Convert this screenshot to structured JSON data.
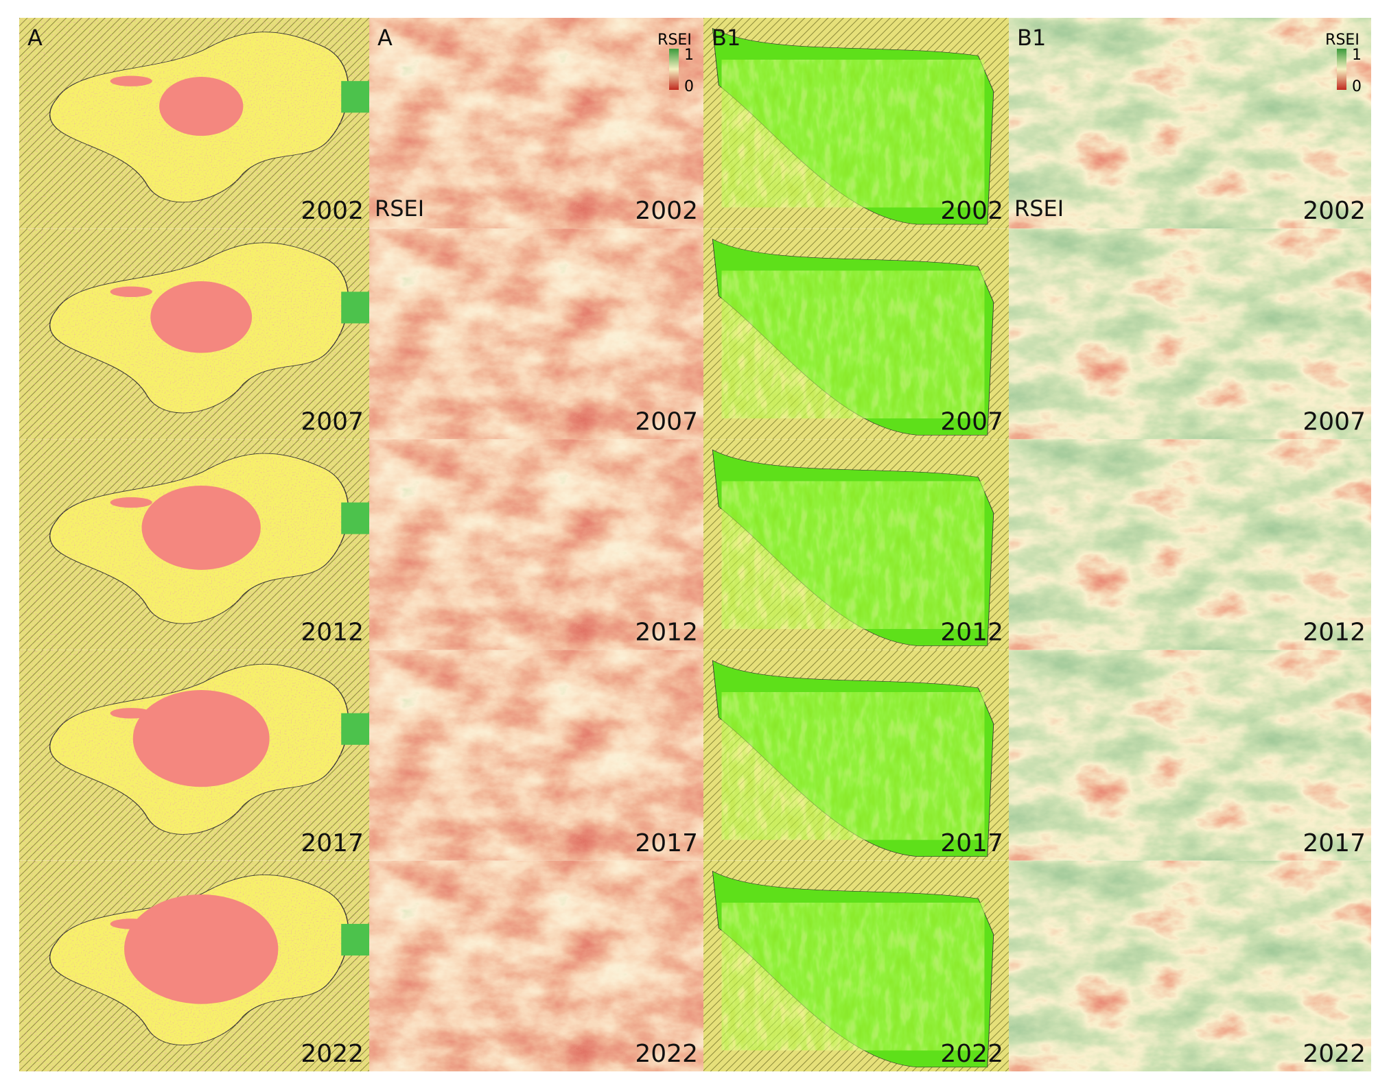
{
  "columns": [
    {
      "label": "A",
      "years": [
        "2002",
        "2007",
        "2012",
        "2017",
        "2022"
      ]
    },
    {
      "label": "A",
      "side_label": "RSEI",
      "legend_title": "RSEI",
      "legend_max": "1",
      "legend_min": "0",
      "years": [
        "2002",
        "2007",
        "2012",
        "2017",
        "2022"
      ]
    },
    {
      "label": "B1",
      "years": [
        "2002",
        "2007",
        "2012",
        "2017",
        "2022"
      ]
    },
    {
      "label": "B1",
      "side_label": "RSEI",
      "legend_title": "RSEI",
      "legend_max": "1",
      "legend_min": "0",
      "years": [
        "2002",
        "2007",
        "2012",
        "2017",
        "2022"
      ]
    }
  ]
}
